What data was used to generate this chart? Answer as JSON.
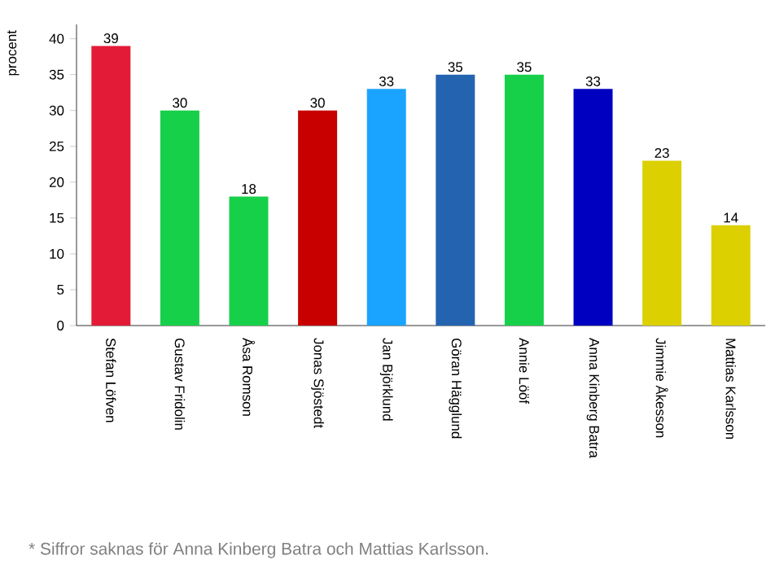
{
  "chart_data": {
    "type": "bar",
    "ylabel": "procent",
    "categories": [
      "Stefan Löfven",
      "Gustav Fridolin",
      "Åsa Romson",
      "Jonas Sjöstedt",
      "Jan Björklund",
      "Göran Hägglund",
      "Annie Lööf",
      "Anna Kinberg Batra",
      "Jimmie Åkesson",
      "Mattias Karlsson"
    ],
    "values": [
      39,
      30,
      18,
      30,
      33,
      35,
      35,
      33,
      23,
      14
    ],
    "colors": [
      "#e31b37",
      "#17d04a",
      "#17d04a",
      "#c80000",
      "#1aa3ff",
      "#2463b0",
      "#17d04a",
      "#0000c0",
      "#dcd000",
      "#dcd000"
    ],
    "ylim": [
      0,
      42
    ],
    "yticks": [
      0,
      5,
      10,
      15,
      20,
      25,
      30,
      35,
      40
    ],
    "data_labels": true,
    "annotations": [
      "* Siffror saknas för Anna Kinberg Batra och Mattias Karlsson."
    ]
  }
}
